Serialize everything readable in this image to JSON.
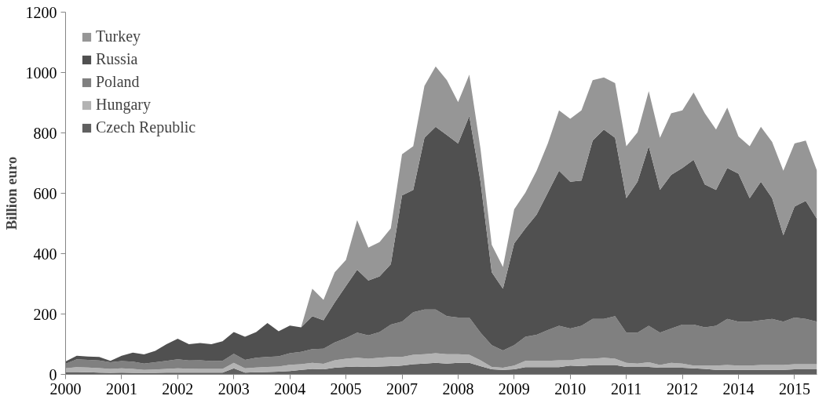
{
  "chart_data": {
    "type": "area",
    "stacked": true,
    "ylabel": "Billion euro",
    "legend": "top left",
    "grid": false,
    "categories": [
      "2000",
      null,
      null,
      null,
      null,
      "2001",
      null,
      null,
      null,
      null,
      "2002",
      null,
      null,
      null,
      null,
      "2003",
      null,
      null,
      null,
      null,
      "2004",
      null,
      null,
      null,
      null,
      "2005",
      null,
      null,
      null,
      null,
      "2007",
      null,
      null,
      null,
      null,
      "2008",
      null,
      null,
      null,
      null,
      "2009",
      null,
      null,
      null,
      null,
      "2010",
      null,
      null,
      null,
      null,
      "2011",
      null,
      null,
      null,
      null,
      "2012",
      null,
      null,
      null,
      null,
      "2014",
      null,
      null,
      null,
      null,
      "2015",
      null,
      null
    ],
    "ylim": [
      0,
      1200
    ],
    "yticks": [
      0,
      200,
      400,
      600,
      800,
      1000,
      1200
    ],
    "series": [
      {
        "name": "Czech Republic",
        "color": "#606060",
        "values": [
          8,
          8,
          7,
          6,
          5,
          6,
          5,
          5,
          5,
          6,
          6,
          6,
          6,
          6,
          6,
          20,
          6,
          7,
          8,
          9,
          11,
          15,
          18,
          17,
          22,
          25,
          26,
          25,
          26,
          27,
          29,
          34,
          36,
          38,
          36,
          38,
          38,
          27,
          17,
          15,
          17,
          24,
          24,
          24,
          24,
          29,
          27,
          31,
          31,
          31,
          25,
          25,
          25,
          22,
          22,
          22,
          20,
          18,
          15,
          15,
          15,
          15,
          15,
          15,
          15,
          17,
          17,
          17
        ]
      },
      {
        "name": "Hungary",
        "color": "#b3b3b3",
        "values": [
          12,
          16,
          16,
          15,
          13,
          14,
          13,
          10,
          11,
          12,
          14,
          13,
          12,
          12,
          12,
          18,
          14,
          16,
          17,
          17,
          21,
          19,
          20,
          18,
          25,
          27,
          29,
          27,
          29,
          31,
          29,
          31,
          31,
          32,
          31,
          29,
          27,
          20,
          8,
          7,
          12,
          21,
          21,
          21,
          23,
          18,
          25,
          21,
          24,
          21,
          13,
          11,
          15,
          9,
          16,
          14,
          9,
          11,
          14,
          16,
          14,
          14,
          16,
          16,
          16,
          17,
          17,
          17
        ]
      },
      {
        "name": "Poland",
        "color": "#808080",
        "values": [
          15,
          26,
          25,
          25,
          22,
          24,
          24,
          21,
          24,
          27,
          30,
          27,
          29,
          26,
          27,
          30,
          28,
          32,
          33,
          34,
          38,
          41,
          46,
          50,
          59,
          68,
          83,
          77,
          85,
          107,
          117,
          141,
          148,
          145,
          126,
          121,
          123,
          91,
          72,
          57,
          68,
          80,
          86,
          102,
          114,
          105,
          109,
          132,
          129,
          141,
          100,
          102,
          121,
          107,
          114,
          129,
          136,
          127,
          132,
          153,
          146,
          146,
          148,
          153,
          144,
          154,
          150,
          141
        ]
      },
      {
        "name": "Russia",
        "color": "#505050",
        "values": [
          8,
          12,
          11,
          12,
          5,
          18,
          30,
          30,
          38,
          55,
          68,
          54,
          57,
          56,
          65,
          72,
          77,
          85,
          112,
          83,
          92,
          81,
          109,
          94,
          132,
          173,
          209,
          182,
          185,
          200,
          418,
          405,
          569,
          605,
          600,
          577,
          668,
          500,
          241,
          205,
          337,
          359,
          398,
          455,
          514,
          486,
          481,
          591,
          627,
          591,
          446,
          500,
          595,
          473,
          509,
          519,
          546,
          473,
          450,
          500,
          490,
          409,
          459,
          400,
          286,
          368,
          391,
          340
        ]
      },
      {
        "name": "Turkey",
        "color": "#969696",
        "values": [
          0,
          0,
          0,
          0,
          0,
          0,
          0,
          0,
          0,
          0,
          0,
          0,
          0,
          0,
          0,
          0,
          0,
          0,
          0,
          0,
          0,
          0,
          91,
          68,
          100,
          86,
          164,
          109,
          113,
          119,
          136,
          145,
          172,
          200,
          182,
          137,
          137,
          109,
          91,
          72,
          113,
          118,
          146,
          163,
          200,
          209,
          233,
          200,
          173,
          181,
          172,
          164,
          182,
          173,
          204,
          191,
          223,
          236,
          200,
          200,
          123,
          172,
          182,
          186,
          214,
          209,
          200,
          160
        ]
      }
    ]
  }
}
